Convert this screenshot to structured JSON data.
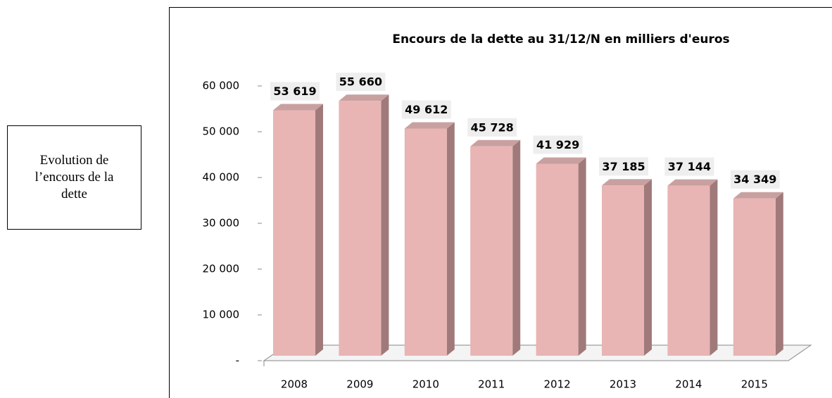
{
  "side_label": "Evolution de l’encours de la dette",
  "chart_data": {
    "type": "bar3d",
    "title": "Encours de la dette au 31/12/N en milliers d'euros",
    "categories": [
      "2008",
      "2009",
      "2010",
      "2011",
      "2012",
      "2013",
      "2014",
      "2015"
    ],
    "values": [
      53619,
      55660,
      49612,
      45728,
      41929,
      37185,
      37144,
      34349
    ],
    "value_labels": [
      "53 619",
      "55 660",
      "49 612",
      "45 728",
      "41 929",
      "37 185",
      "37 144",
      "34 349"
    ],
    "color": "#e8b4b4",
    "ylim": [
      0,
      60000
    ],
    "yticks": [
      {
        "value": 0,
        "label": "-"
      },
      {
        "value": 10000,
        "label": "10 000"
      },
      {
        "value": 20000,
        "label": "20 000"
      },
      {
        "value": 30000,
        "label": "30 000"
      },
      {
        "value": 40000,
        "label": "40 000"
      },
      {
        "value": 50000,
        "label": "50 000"
      },
      {
        "value": 60000,
        "label": "60 000"
      }
    ],
    "grid": false
  }
}
